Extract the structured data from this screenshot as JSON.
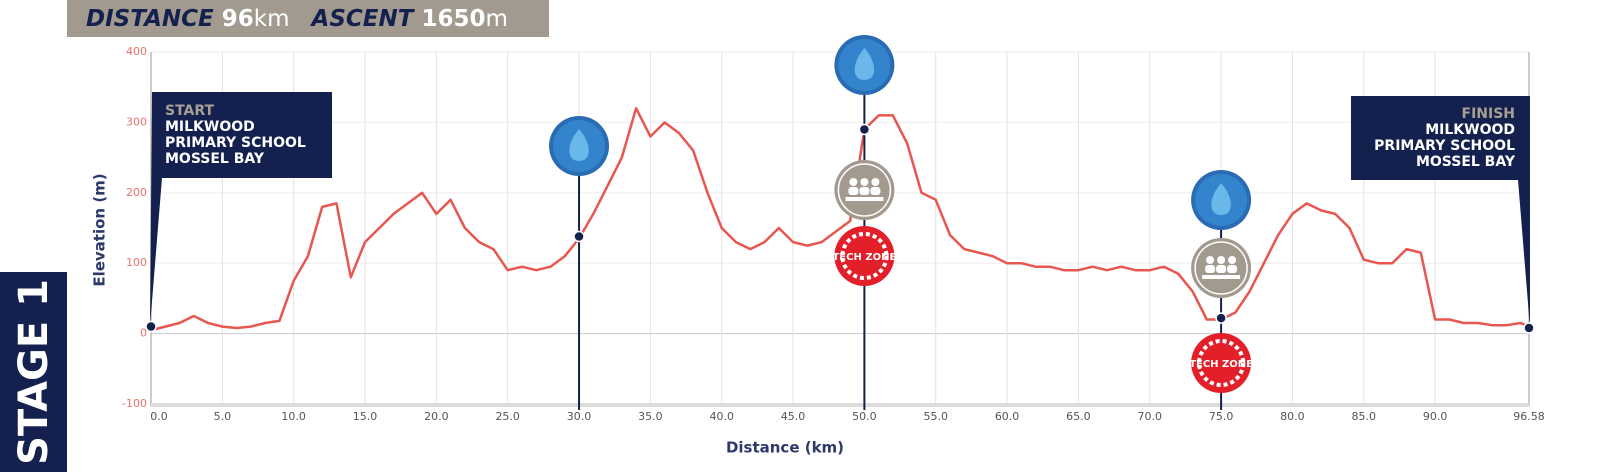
{
  "header": {
    "distance_label": "DISTANCE",
    "distance": "96",
    "distance_unit": "km",
    "ascent_label": "ASCENT",
    "ascent": "1650",
    "ascent_unit": "m"
  },
  "stage": "STAGE 1",
  "chart_data": {
    "type": "line",
    "xlabel": "Distance (km)",
    "ylabel": "Elevation (m)",
    "x": [
      0,
      1,
      2,
      3,
      4,
      5,
      6,
      7,
      8,
      9,
      10,
      11,
      12,
      13,
      14,
      15,
      16,
      17,
      18,
      19,
      20,
      21,
      22,
      23,
      24,
      25,
      26,
      27,
      28,
      29,
      30,
      31,
      32,
      33,
      34,
      35,
      36,
      37,
      38,
      39,
      40,
      41,
      42,
      43,
      44,
      45,
      46,
      47,
      48,
      49,
      50,
      51,
      52,
      53,
      54,
      55,
      56,
      57,
      58,
      59,
      60,
      61,
      62,
      63,
      64,
      65,
      66,
      67,
      68,
      69,
      70,
      71,
      72,
      73,
      74,
      75,
      76,
      77,
      78,
      79,
      80,
      81,
      82,
      83,
      84,
      85,
      86,
      87,
      88,
      89,
      90,
      91,
      92,
      93,
      94,
      95,
      96,
      96.58
    ],
    "series": [
      {
        "name": "Elevation",
        "color": "#e8574f",
        "values": [
          5,
          10,
          15,
          25,
          15,
          10,
          8,
          10,
          15,
          18,
          75,
          110,
          180,
          185,
          80,
          130,
          150,
          170,
          185,
          200,
          170,
          190,
          150,
          130,
          120,
          90,
          95,
          90,
          95,
          110,
          135,
          170,
          210,
          250,
          320,
          280,
          300,
          285,
          260,
          200,
          150,
          130,
          120,
          130,
          150,
          130,
          125,
          130,
          145,
          160,
          290,
          310,
          310,
          270,
          200,
          190,
          140,
          120,
          115,
          110,
          100,
          100,
          95,
          95,
          90,
          90,
          95,
          90,
          95,
          90,
          90,
          95,
          85,
          60,
          20,
          20,
          30,
          60,
          100,
          140,
          170,
          185,
          175,
          170,
          150,
          105,
          100,
          100,
          120,
          115,
          20,
          20,
          15,
          15,
          12,
          12,
          15,
          10
        ]
      }
    ],
    "xlim": [
      0,
      96.58
    ],
    "xticks": [
      {
        "value": 0,
        "label": "0.0"
      },
      {
        "value": 5,
        "label": "5.0"
      },
      {
        "value": 10,
        "label": "10.0"
      },
      {
        "value": 15,
        "label": "15.0"
      },
      {
        "value": 20,
        "label": "20.0"
      },
      {
        "value": 25,
        "label": "25.0"
      },
      {
        "value": 30,
        "label": "30.0"
      },
      {
        "value": 35,
        "label": "35.0"
      },
      {
        "value": 40,
        "label": "40.0"
      },
      {
        "value": 45,
        "label": "45.0"
      },
      {
        "value": 50,
        "label": "50.0"
      },
      {
        "value": 55,
        "label": "55.0"
      },
      {
        "value": 60,
        "label": "60.0"
      },
      {
        "value": 65,
        "label": "65.0"
      },
      {
        "value": 70,
        "label": "70.0"
      },
      {
        "value": 75,
        "label": "75.0"
      },
      {
        "value": 80,
        "label": "80.0"
      },
      {
        "value": 85,
        "label": "85.0"
      },
      {
        "value": 90,
        "label": "90.0"
      },
      {
        "value": 96.58,
        "label": "96.58"
      }
    ],
    "ylim": [
      -100,
      400
    ],
    "yticks": [
      -100,
      0,
      100,
      200,
      300,
      400
    ],
    "grid": true,
    "tech_zone_label": "TECH ZONE",
    "start": {
      "x": 0,
      "elevation": 10,
      "title": "START",
      "lines": [
        "MILKWOOD",
        "PRIMARY SCHOOL",
        "MOSSEL BAY"
      ]
    },
    "finish": {
      "x": 96.58,
      "elevation": 8,
      "title": "FINISH",
      "lines": [
        "MILKWOOD",
        "PRIMARY SCHOOL",
        "MOSSEL BAY"
      ]
    },
    "waypoints": [
      {
        "x": 30,
        "elevation": 138,
        "services": [
          "water"
        ]
      },
      {
        "x": 50,
        "elevation": 290,
        "services": [
          "water",
          "support",
          "tech"
        ]
      },
      {
        "x": 75,
        "elevation": 22,
        "services": [
          "water",
          "support",
          "tech"
        ]
      }
    ]
  }
}
